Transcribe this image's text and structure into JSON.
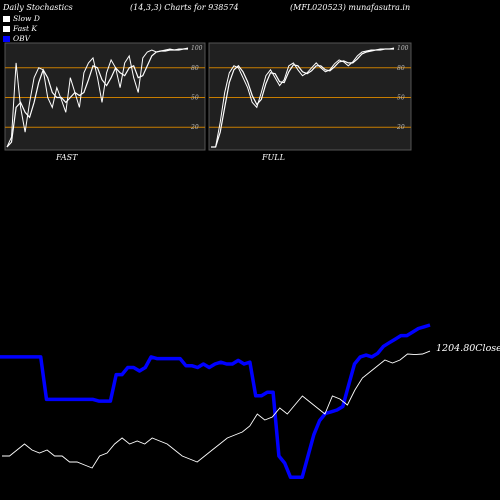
{
  "header": {
    "title": "Daily Stochastics",
    "params": "(14,3,3) Charts for 938574",
    "site": "(MFL020523) munafasutra.in"
  },
  "legend": [
    {
      "label": "Slow  D",
      "color": "#ffffff"
    },
    {
      "label": "Fast K",
      "color": "#ffffff"
    },
    {
      "label": "OBV",
      "color": "#0000ff"
    }
  ],
  "colors": {
    "background": "#000000",
    "panel_bg": "#202020",
    "reference_line": "#c87d00",
    "obv_line": "#0000ff",
    "price_line": "#ffffff"
  },
  "chart_data": [
    {
      "type": "line",
      "title": "FAST",
      "ylim": [
        0,
        100
      ],
      "yticks": [
        20,
        50,
        80,
        100
      ],
      "reference_lines": [
        20,
        50,
        80
      ],
      "series": [
        {
          "name": "Fast K",
          "values": [
            0,
            10,
            85,
            40,
            15,
            45,
            70,
            80,
            78,
            50,
            40,
            60,
            48,
            35,
            70,
            55,
            40,
            75,
            85,
            90,
            70,
            45,
            75,
            88,
            80,
            60,
            85,
            92,
            70,
            55,
            90,
            96,
            98,
            96,
            97,
            98,
            99,
            98,
            99,
            99,
            100
          ]
        },
        {
          "name": "Slow D",
          "values": [
            0,
            5,
            40,
            45,
            35,
            30,
            45,
            65,
            78,
            70,
            55,
            50,
            50,
            45,
            50,
            55,
            52,
            55,
            68,
            82,
            80,
            68,
            62,
            70,
            80,
            75,
            72,
            80,
            82,
            70,
            72,
            82,
            92,
            96,
            97,
            97,
            98,
            98,
            98,
            99,
            99
          ]
        }
      ]
    },
    {
      "type": "line",
      "title": "FULL",
      "ylim": [
        0,
        100
      ],
      "yticks": [
        20,
        50,
        80,
        100
      ],
      "reference_lines": [
        20,
        50,
        80
      ],
      "series": [
        {
          "name": "Fast K",
          "values": [
            0,
            0,
            25,
            55,
            75,
            82,
            80,
            70,
            60,
            45,
            40,
            55,
            72,
            78,
            70,
            62,
            68,
            82,
            85,
            78,
            72,
            75,
            80,
            85,
            80,
            76,
            78,
            84,
            88,
            86,
            82,
            86,
            92,
            96,
            97,
            98,
            98,
            99,
            99,
            99,
            100
          ]
        },
        {
          "name": "Slow D",
          "values": [
            0,
            0,
            15,
            40,
            65,
            78,
            82,
            76,
            66,
            52,
            43,
            48,
            64,
            75,
            74,
            66,
            65,
            76,
            83,
            82,
            76,
            74,
            77,
            82,
            82,
            78,
            77,
            81,
            86,
            87,
            85,
            85,
            89,
            94,
            96,
            97,
            98,
            98,
            99,
            99,
            99
          ]
        }
      ]
    },
    {
      "type": "line",
      "title": "",
      "annotations": [
        "1204.80Close"
      ],
      "series": [
        {
          "name": "OBV",
          "values": [
            380,
            380,
            380,
            380,
            380,
            380,
            380,
            380,
            260,
            260,
            260,
            260,
            260,
            260,
            260,
            260,
            260,
            255,
            255,
            255,
            330,
            330,
            350,
            350,
            340,
            350,
            380,
            375,
            375,
            375,
            375,
            375,
            355,
            355,
            350,
            360,
            350,
            360,
            365,
            360,
            360,
            370,
            360,
            365,
            270,
            270,
            280,
            280,
            100,
            80,
            40,
            40,
            40,
            100,
            160,
            200,
            220,
            225,
            230,
            240,
            300,
            360,
            380,
            385,
            380,
            390,
            410,
            420,
            430,
            440,
            440,
            450,
            460,
            465,
            470
          ]
        },
        {
          "name": "Close",
          "values": [
            1030,
            1030,
            1040,
            1050,
            1040,
            1035,
            1040,
            1030,
            1030,
            1020,
            1020,
            1015,
            1010,
            1030,
            1035,
            1050,
            1060,
            1050,
            1055,
            1050,
            1060,
            1055,
            1050,
            1040,
            1030,
            1025,
            1020,
            1030,
            1040,
            1050,
            1060,
            1065,
            1070,
            1080,
            1100,
            1090,
            1095,
            1110,
            1100,
            1115,
            1130,
            1120,
            1110,
            1100,
            1130,
            1125,
            1115,
            1140,
            1160,
            1170,
            1180,
            1190,
            1185,
            1190,
            1200,
            1199,
            1200,
            1204.8
          ]
        }
      ]
    }
  ],
  "price_label": "1204.80Close"
}
